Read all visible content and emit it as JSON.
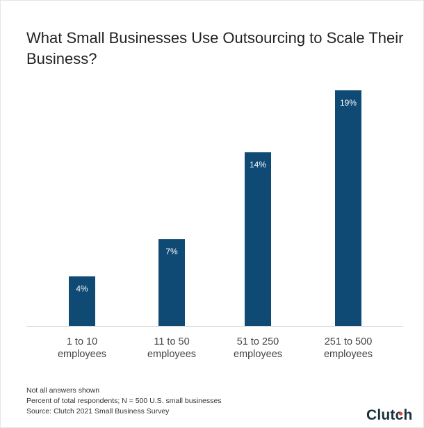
{
  "chart_data": {
    "type": "bar",
    "title": "What Small Businesses Use Outsourcing to Scale Their Business?",
    "categories": [
      "1 to 10 employees",
      "11 to 50 employees",
      "51 to 250 employees",
      "251 to 500 employees"
    ],
    "category_lines": [
      [
        "1 to 10",
        "employees"
      ],
      [
        "11 to 50",
        "employees"
      ],
      [
        "51 to 250",
        "employees"
      ],
      [
        "251 to 500",
        "employees"
      ]
    ],
    "values": [
      4,
      7,
      14,
      19
    ],
    "value_labels": [
      "4%",
      "7%",
      "14%",
      "19%"
    ],
    "xlabel": "",
    "ylabel": "",
    "ylim": [
      0,
      19
    ],
    "grid": false,
    "bar_color": "#0e4a74"
  },
  "notes": {
    "line1": "Not all answers shown",
    "line2": "Percent of total respondents; N = 500 U.S. small businesses",
    "line3": "Source: Clutch 2021 Small Business Survey"
  },
  "logo": {
    "text": "Clutch"
  }
}
